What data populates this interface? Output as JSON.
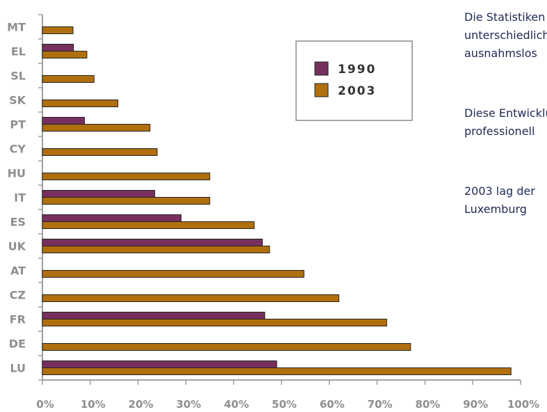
{
  "chart_data": {
    "type": "bar",
    "orientation": "horizontal",
    "categories": [
      "MT",
      "EL",
      "SL",
      "SK",
      "PT",
      "CY",
      "HU",
      "IT",
      "ES",
      "UK",
      "AT",
      "CZ",
      "FR",
      "DE",
      "LU"
    ],
    "series": [
      {
        "name": "1990",
        "values": [
          null,
          6.5,
          null,
          null,
          8.8,
          null,
          null,
          23.5,
          29,
          46,
          null,
          null,
          46.5,
          null,
          49
        ]
      },
      {
        "name": "2003",
        "values": [
          6.4,
          9.3,
          10.8,
          15.8,
          22.5,
          24,
          35,
          35,
          44.3,
          47.5,
          54.7,
          62,
          72,
          77,
          98
        ]
      }
    ],
    "xlim": [
      0,
      100
    ],
    "xticks": [
      "0%",
      "10%",
      "20%",
      "30%",
      "40%",
      "50%",
      "60%",
      "70%",
      "80%",
      "90%",
      "100%"
    ],
    "grid": false,
    "legend_position": "top-right",
    "colors": {
      "1990": "#77305e",
      "2003": "#b06f0e",
      "axis": "#9e9e9e",
      "label": "#8e8e8e"
    }
  },
  "text_panel": {
    "paragraphs": [
      [
        "Die Statistiken",
        "unterschiedlich",
        "ausnahmslos"
      ],
      [
        "Diese Entwicklung",
        "professionell"
      ],
      [
        "2003 lag der",
        "Luxemburg"
      ]
    ]
  }
}
